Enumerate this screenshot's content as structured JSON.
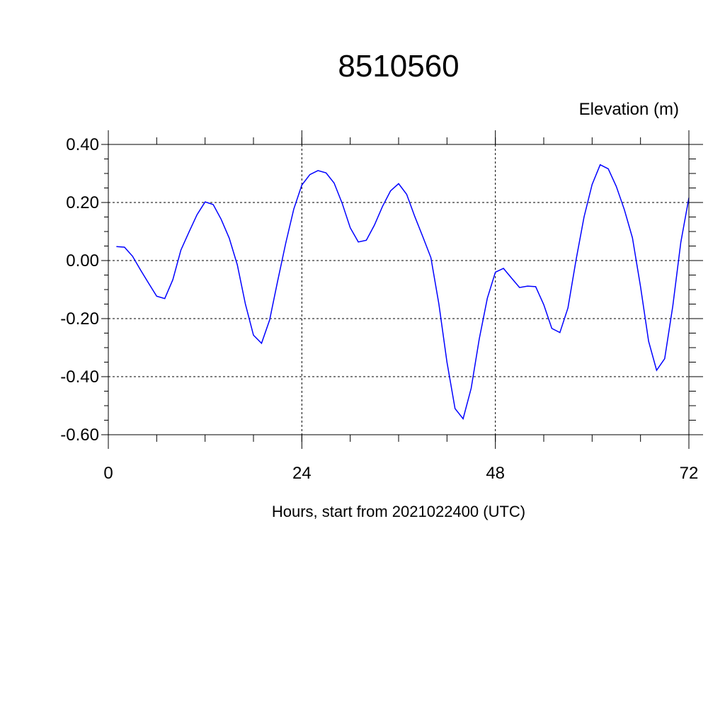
{
  "chart_data": {
    "type": "line",
    "title": "8510560",
    "ylabel": "Elevation (m)",
    "xlabel": "Hours, start from 2021022400 (UTC)",
    "xlim": [
      0,
      72
    ],
    "ylim": [
      -0.6,
      0.4
    ],
    "x_ticks": [
      0,
      24,
      48,
      72
    ],
    "x_tick_labels": [
      "0",
      "24",
      "48",
      "72"
    ],
    "y_ticks": [
      0.4,
      0.2,
      0.0,
      -0.2,
      -0.4,
      -0.6
    ],
    "y_tick_labels": [
      "0.40",
      "0.20",
      "0.00",
      "-0.20",
      "-0.40",
      "-0.60"
    ],
    "grid": true,
    "line_color": "#0000ff",
    "series": [
      {
        "x": [
          1,
          2,
          3,
          4,
          5,
          6,
          7,
          8,
          9,
          10,
          11,
          12,
          13,
          14,
          15,
          16,
          17,
          18,
          19,
          20,
          21,
          22,
          23,
          24,
          25,
          26,
          27,
          28,
          29,
          30,
          31,
          32,
          33,
          34,
          35,
          36,
          37,
          38,
          39,
          40,
          41,
          42,
          43,
          44,
          45,
          46,
          47,
          48,
          49,
          50,
          51,
          52,
          53,
          54,
          55,
          56,
          57,
          58,
          59,
          60,
          61,
          62,
          63,
          64,
          65,
          66,
          67,
          68,
          69,
          70,
          71,
          72
        ],
        "values": [
          0.048,
          0.046,
          0.015,
          -0.033,
          -0.078,
          -0.123,
          -0.131,
          -0.066,
          0.036,
          0.098,
          0.158,
          0.202,
          0.193,
          0.142,
          0.077,
          -0.015,
          -0.15,
          -0.257,
          -0.285,
          -0.205,
          -0.07,
          0.06,
          0.177,
          0.26,
          0.296,
          0.31,
          0.302,
          0.267,
          0.197,
          0.113,
          0.064,
          0.07,
          0.122,
          0.186,
          0.24,
          0.265,
          0.228,
          0.152,
          0.082,
          0.01,
          -0.15,
          -0.35,
          -0.51,
          -0.545,
          -0.44,
          -0.27,
          -0.13,
          -0.04,
          -0.027,
          -0.06,
          -0.093,
          -0.088,
          -0.09,
          -0.152,
          -0.234,
          -0.248,
          -0.163,
          0.002,
          0.15,
          0.262,
          0.33,
          0.316,
          0.255,
          0.175,
          0.078,
          -0.09,
          -0.278,
          -0.378,
          -0.338,
          -0.158,
          0.063,
          0.216
        ]
      }
    ]
  }
}
